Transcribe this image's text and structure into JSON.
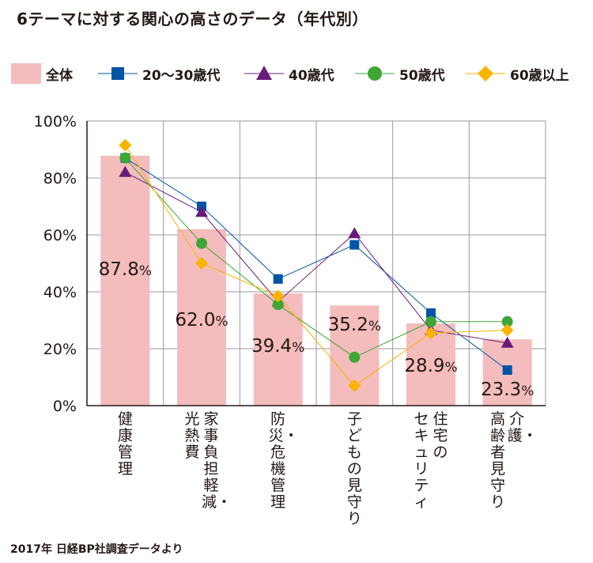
{
  "title": "6テーマに対する関心の高さのデータ（年代別）",
  "source": "2017年 日経BP社調査データより",
  "colors": {
    "bar": "#f4bcbc",
    "series20_30": "#0054a6",
    "series40": "#6a1b7a",
    "series50": "#3fa535",
    "series60": "#f8b500",
    "grid": "#9a9a9a",
    "axis": "#231815"
  },
  "chart_data": {
    "type": "bar",
    "ylim": [
      0,
      100
    ],
    "yticks": [
      "0%",
      "20%",
      "40%",
      "60%",
      "80%",
      "100%"
    ],
    "grid": true,
    "legend_position": "top",
    "categories": [
      [
        "健康管理"
      ],
      [
        "家事負担軽減・",
        "光熱費"
      ],
      [
        "防災・危機管理"
      ],
      [
        "子どもの見守り"
      ],
      [
        "住宅の",
        "セキュリティ"
      ],
      [
        "介護・",
        "高齢者見守り"
      ]
    ],
    "bar_series": {
      "name": "全体",
      "values": [
        87.8,
        62.0,
        39.4,
        35.2,
        28.9,
        23.3
      ],
      "labels": [
        "87.8%",
        "62.0%",
        "39.4%",
        "35.2%",
        "28.9%",
        "23.3%"
      ]
    },
    "line_series": [
      {
        "name": "20〜30歳代",
        "marker": "square",
        "values": [
          87,
          70,
          44.5,
          56.5,
          32.5,
          12.5
        ]
      },
      {
        "name": "40歳代",
        "marker": "triangle",
        "values": [
          82,
          68,
          36.5,
          60.5,
          26.5,
          22
        ]
      },
      {
        "name": "50歳代",
        "marker": "circle",
        "values": [
          87,
          57,
          35.5,
          17,
          29.5,
          29.5
        ]
      },
      {
        "name": "60歳以上",
        "marker": "diamond",
        "values": [
          91.5,
          50,
          38.5,
          7,
          25.5,
          26.5
        ]
      }
    ]
  }
}
